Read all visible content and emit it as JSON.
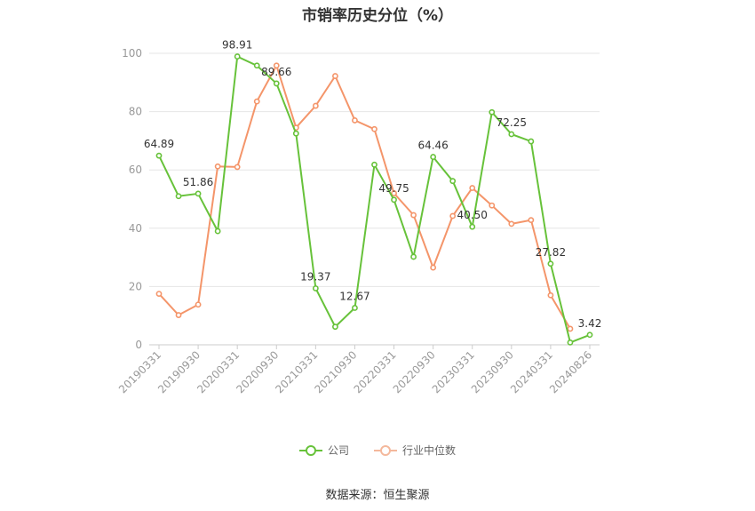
{
  "title": "市销率历史分位（%）",
  "source": "数据来源：恒生聚源",
  "chart_data": {
    "type": "line",
    "x": [
      "20190331",
      "20190630",
      "20190930",
      "20191231",
      "20200331",
      "20200630",
      "20200930",
      "20201231",
      "20210331",
      "20210630",
      "20210930",
      "20211231",
      "20220331",
      "20220630",
      "20220930",
      "20221231",
      "20230331",
      "20230630",
      "20230930",
      "20231231",
      "20240331",
      "20240630",
      "20240826"
    ],
    "x_tick_labels": [
      "20190331",
      "20190930",
      "20200331",
      "20200930",
      "20210331",
      "20210930",
      "20220331",
      "20220930",
      "20230331",
      "20230930",
      "20240331",
      "20240826"
    ],
    "ylim": [
      0,
      100
    ],
    "y_ticks": [
      0,
      20,
      40,
      60,
      80,
      100
    ],
    "grid": true,
    "legend_position": "bottom",
    "series": [
      {
        "name": "公司",
        "color": "#67c23a",
        "values": [
          64.89,
          51.0,
          51.86,
          39.0,
          98.91,
          95.8,
          89.66,
          72.5,
          19.37,
          6.2,
          12.67,
          61.8,
          49.75,
          30.2,
          64.46,
          56.2,
          40.5,
          79.8,
          72.25,
          69.8,
          27.82,
          0.8,
          3.42
        ],
        "data_labels": {
          "0": "64.89",
          "2": "51.86",
          "4": "98.91",
          "6": "89.66",
          "8": "19.37",
          "10": "12.67",
          "12": "49.75",
          "14": "64.46",
          "16": "40.50",
          "18": "72.25",
          "20": "27.82",
          "22": "3.42"
        }
      },
      {
        "name": "行业中位数",
        "color": "#f4956a",
        "values": [
          17.5,
          10.2,
          13.8,
          61.2,
          61.0,
          83.5,
          95.8,
          74.5,
          82.0,
          92.2,
          77.0,
          74.0,
          52.0,
          44.5,
          26.5,
          44.2,
          53.8,
          47.8,
          41.5,
          42.8,
          17.0,
          5.5,
          null
        ]
      }
    ]
  }
}
